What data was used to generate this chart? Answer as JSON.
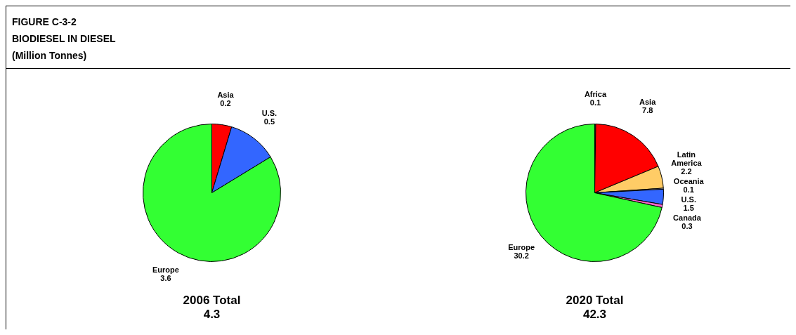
{
  "chart_data": [
    {
      "type": "pie",
      "title": "2006 Total",
      "subtitle": "4.3",
      "annotations": [
        "FIGURE C-3-2",
        "BIODIESEL IN DIESEL",
        "(Million Tonnes)"
      ],
      "categories": [
        "Asia",
        "U.S.",
        "Europe"
      ],
      "values": [
        0.2,
        0.5,
        3.6
      ],
      "colors": [
        "#ff0000",
        "#3366ff",
        "#33ff33"
      ],
      "data_labels": true,
      "legend": false
    },
    {
      "type": "pie",
      "title": "2020 Total",
      "subtitle": "42.3",
      "categories": [
        "Africa",
        "Asia",
        "Latin America",
        "Oceania",
        "U.S.",
        "Canada",
        "Europe"
      ],
      "values": [
        0.1,
        7.8,
        2.2,
        0.1,
        1.5,
        0.3,
        30.2
      ],
      "colors": [
        "#339933",
        "#ff0000",
        "#ffcc66",
        "#ffffff",
        "#3366ff",
        "#ff66cc",
        "#33ff33"
      ],
      "data_labels": true,
      "legend": false
    }
  ]
}
